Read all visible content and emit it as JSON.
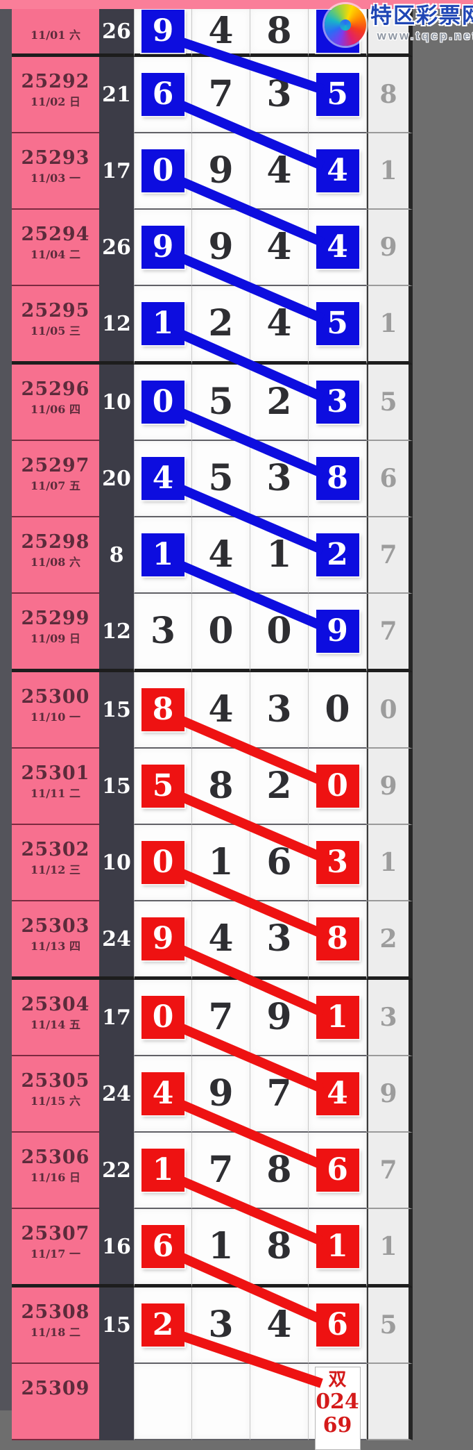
{
  "site": {
    "logo_text": "特区彩票网",
    "logo_url": "www.tqcp.net"
  },
  "palette": {
    "blue": "#0d0ddf",
    "red": "#ee1212",
    "pink_cell": "#f7708f",
    "top_bar": "#fa7e99",
    "sum_column_bg": "#3c3c47",
    "tail_bg": "#ededed",
    "tail_text": "#9c9c9c",
    "plain_digit": "#2e2e32",
    "annotation_text": "#d41a1a",
    "page_bg": "#6e6e6e"
  },
  "chart_data": {
    "type": "table",
    "legend_note_visible": false,
    "rows": [
      {
        "period": "",
        "date": "11/01 六",
        "sum": "26",
        "color": "blue",
        "group_end": true,
        "top_partial": true,
        "digits": [
          {
            "v": "9",
            "hl": true
          },
          {
            "v": "4"
          },
          {
            "v": "8"
          },
          {
            "v": "",
            "hl": true
          }
        ],
        "tail": ""
      },
      {
        "period": "25292",
        "date": "11/02 日",
        "sum": "21",
        "color": "blue",
        "digits": [
          {
            "v": "6",
            "hl": true
          },
          {
            "v": "7"
          },
          {
            "v": "3"
          },
          {
            "v": "5",
            "hl": true
          }
        ],
        "tail": "8"
      },
      {
        "period": "25293",
        "date": "11/03 一",
        "sum": "17",
        "color": "blue",
        "digits": [
          {
            "v": "0",
            "hl": true
          },
          {
            "v": "9"
          },
          {
            "v": "4"
          },
          {
            "v": "4",
            "hl": true
          }
        ],
        "tail": "1"
      },
      {
        "period": "25294",
        "date": "11/04 二",
        "sum": "26",
        "color": "blue",
        "digits": [
          {
            "v": "9",
            "hl": true
          },
          {
            "v": "9"
          },
          {
            "v": "4"
          },
          {
            "v": "4",
            "hl": true
          }
        ],
        "tail": "9"
      },
      {
        "period": "25295",
        "date": "11/05 三",
        "sum": "12",
        "color": "blue",
        "group_end": true,
        "digits": [
          {
            "v": "1",
            "hl": true
          },
          {
            "v": "2"
          },
          {
            "v": "4"
          },
          {
            "v": "5",
            "hl": true
          }
        ],
        "tail": "1"
      },
      {
        "period": "25296",
        "date": "11/06 四",
        "sum": "10",
        "color": "blue",
        "digits": [
          {
            "v": "0",
            "hl": true
          },
          {
            "v": "5"
          },
          {
            "v": "2"
          },
          {
            "v": "3",
            "hl": true
          }
        ],
        "tail": "5"
      },
      {
        "period": "25297",
        "date": "11/07 五",
        "sum": "20",
        "color": "blue",
        "digits": [
          {
            "v": "4",
            "hl": true
          },
          {
            "v": "5"
          },
          {
            "v": "3"
          },
          {
            "v": "8",
            "hl": true
          }
        ],
        "tail": "6"
      },
      {
        "period": "25298",
        "date": "11/08 六",
        "sum": "8",
        "color": "blue",
        "digits": [
          {
            "v": "1",
            "hl": true
          },
          {
            "v": "4"
          },
          {
            "v": "1"
          },
          {
            "v": "2",
            "hl": true
          }
        ],
        "tail": "7"
      },
      {
        "period": "25299",
        "date": "11/09 日",
        "sum": "12",
        "color": "blue",
        "group_end": true,
        "digits": [
          {
            "v": "3"
          },
          {
            "v": "0"
          },
          {
            "v": "0"
          },
          {
            "v": "9",
            "hl": true
          }
        ],
        "tail": "7"
      },
      {
        "period": "25300",
        "date": "11/10 一",
        "sum": "15",
        "color": "red",
        "digits": [
          {
            "v": "8",
            "hl": true
          },
          {
            "v": "4"
          },
          {
            "v": "3"
          },
          {
            "v": "0"
          }
        ],
        "tail": "0"
      },
      {
        "period": "25301",
        "date": "11/11 二",
        "sum": "15",
        "color": "red",
        "digits": [
          {
            "v": "5",
            "hl": true
          },
          {
            "v": "8"
          },
          {
            "v": "2"
          },
          {
            "v": "0",
            "hl": true
          }
        ],
        "tail": "9"
      },
      {
        "period": "25302",
        "date": "11/12 三",
        "sum": "10",
        "color": "red",
        "digits": [
          {
            "v": "0",
            "hl": true
          },
          {
            "v": "1"
          },
          {
            "v": "6"
          },
          {
            "v": "3",
            "hl": true
          }
        ],
        "tail": "1"
      },
      {
        "period": "25303",
        "date": "11/13 四",
        "sum": "24",
        "color": "red",
        "group_end": true,
        "digits": [
          {
            "v": "9",
            "hl": true
          },
          {
            "v": "4"
          },
          {
            "v": "3"
          },
          {
            "v": "8",
            "hl": true
          }
        ],
        "tail": "2"
      },
      {
        "period": "25304",
        "date": "11/14 五",
        "sum": "17",
        "color": "red",
        "digits": [
          {
            "v": "0",
            "hl": true
          },
          {
            "v": "7"
          },
          {
            "v": "9"
          },
          {
            "v": "1",
            "hl": true
          }
        ],
        "tail": "3"
      },
      {
        "period": "25305",
        "date": "11/15 六",
        "sum": "24",
        "color": "red",
        "digits": [
          {
            "v": "4",
            "hl": true
          },
          {
            "v": "9"
          },
          {
            "v": "7"
          },
          {
            "v": "4",
            "hl": true
          }
        ],
        "tail": "9"
      },
      {
        "period": "25306",
        "date": "11/16 日",
        "sum": "22",
        "color": "red",
        "digits": [
          {
            "v": "1",
            "hl": true
          },
          {
            "v": "7"
          },
          {
            "v": "8"
          },
          {
            "v": "6",
            "hl": true
          }
        ],
        "tail": "7"
      },
      {
        "period": "25307",
        "date": "11/17 一",
        "sum": "16",
        "color": "red",
        "group_end": true,
        "digits": [
          {
            "v": "6",
            "hl": true
          },
          {
            "v": "1"
          },
          {
            "v": "8"
          },
          {
            "v": "1",
            "hl": true
          }
        ],
        "tail": "1"
      },
      {
        "period": "25308",
        "date": "11/18 二",
        "sum": "15",
        "color": "red",
        "digits": [
          {
            "v": "2",
            "hl": true
          },
          {
            "v": "3"
          },
          {
            "v": "4"
          },
          {
            "v": "6",
            "hl": true
          }
        ],
        "tail": "5"
      },
      {
        "period": "25309",
        "date": "",
        "sum": "",
        "color": "red",
        "bottom_partial": true,
        "digits": [
          {
            "v": ""
          },
          {
            "v": ""
          },
          {
            "v": ""
          },
          {
            "v": "",
            "annotation": [
              "双",
              "024",
              "69"
            ]
          }
        ],
        "tail": ""
      }
    ]
  }
}
